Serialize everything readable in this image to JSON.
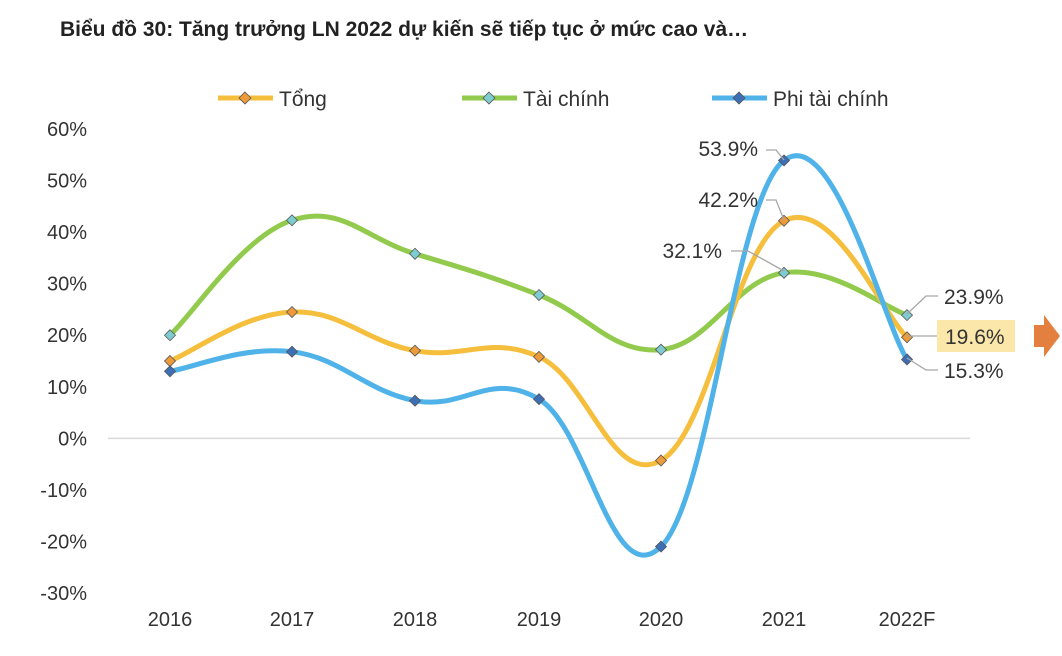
{
  "chart_data": {
    "type": "line",
    "title": "Biểu đồ 30: Tăng trưởng LN 2022 dự kiến sẽ tiếp tục ở mức cao và…",
    "categories": [
      "2016",
      "2017",
      "2018",
      "2019",
      "2020",
      "2021",
      "2022F"
    ],
    "ylim": [
      -30,
      60
    ],
    "yticks": [
      60,
      50,
      40,
      30,
      20,
      10,
      0,
      -10,
      -20,
      -30
    ],
    "ytick_labels": [
      "60%",
      "50%",
      "40%",
      "30%",
      "20%",
      "10%",
      "0%",
      "-10%",
      "-20%",
      "-30%"
    ],
    "grid": false,
    "legend_position": "top",
    "series": [
      {
        "name": "Tổng",
        "color": "#F5BE3C",
        "marker_color": "#ED9A3A",
        "values": [
          15.0,
          24.5,
          17.0,
          15.8,
          -4.3,
          42.2,
          19.6
        ]
      },
      {
        "name": "Tài chính",
        "color": "#92CA4D",
        "marker_color": "#7ECBD0",
        "values": [
          20.0,
          42.3,
          35.8,
          27.8,
          17.2,
          32.1,
          23.9
        ]
      },
      {
        "name": "Phi tài chính",
        "color": "#4FB2E8",
        "marker_color": "#3D6FB6",
        "values": [
          13.0,
          16.8,
          7.3,
          7.6,
          -21.0,
          53.9,
          15.3
        ]
      }
    ],
    "data_labels": [
      {
        "series": 2,
        "index": 5,
        "text": "53.9%"
      },
      {
        "series": 0,
        "index": 5,
        "text": "42.2%"
      },
      {
        "series": 1,
        "index": 5,
        "text": "32.1%"
      },
      {
        "series": 1,
        "index": 6,
        "text": "23.9%"
      },
      {
        "series": 0,
        "index": 6,
        "text": "19.6%",
        "highlight": true
      },
      {
        "series": 2,
        "index": 6,
        "text": "15.3%"
      }
    ],
    "highlight_color": "#FBE7A9",
    "arrow_color": "#E4803F"
  }
}
